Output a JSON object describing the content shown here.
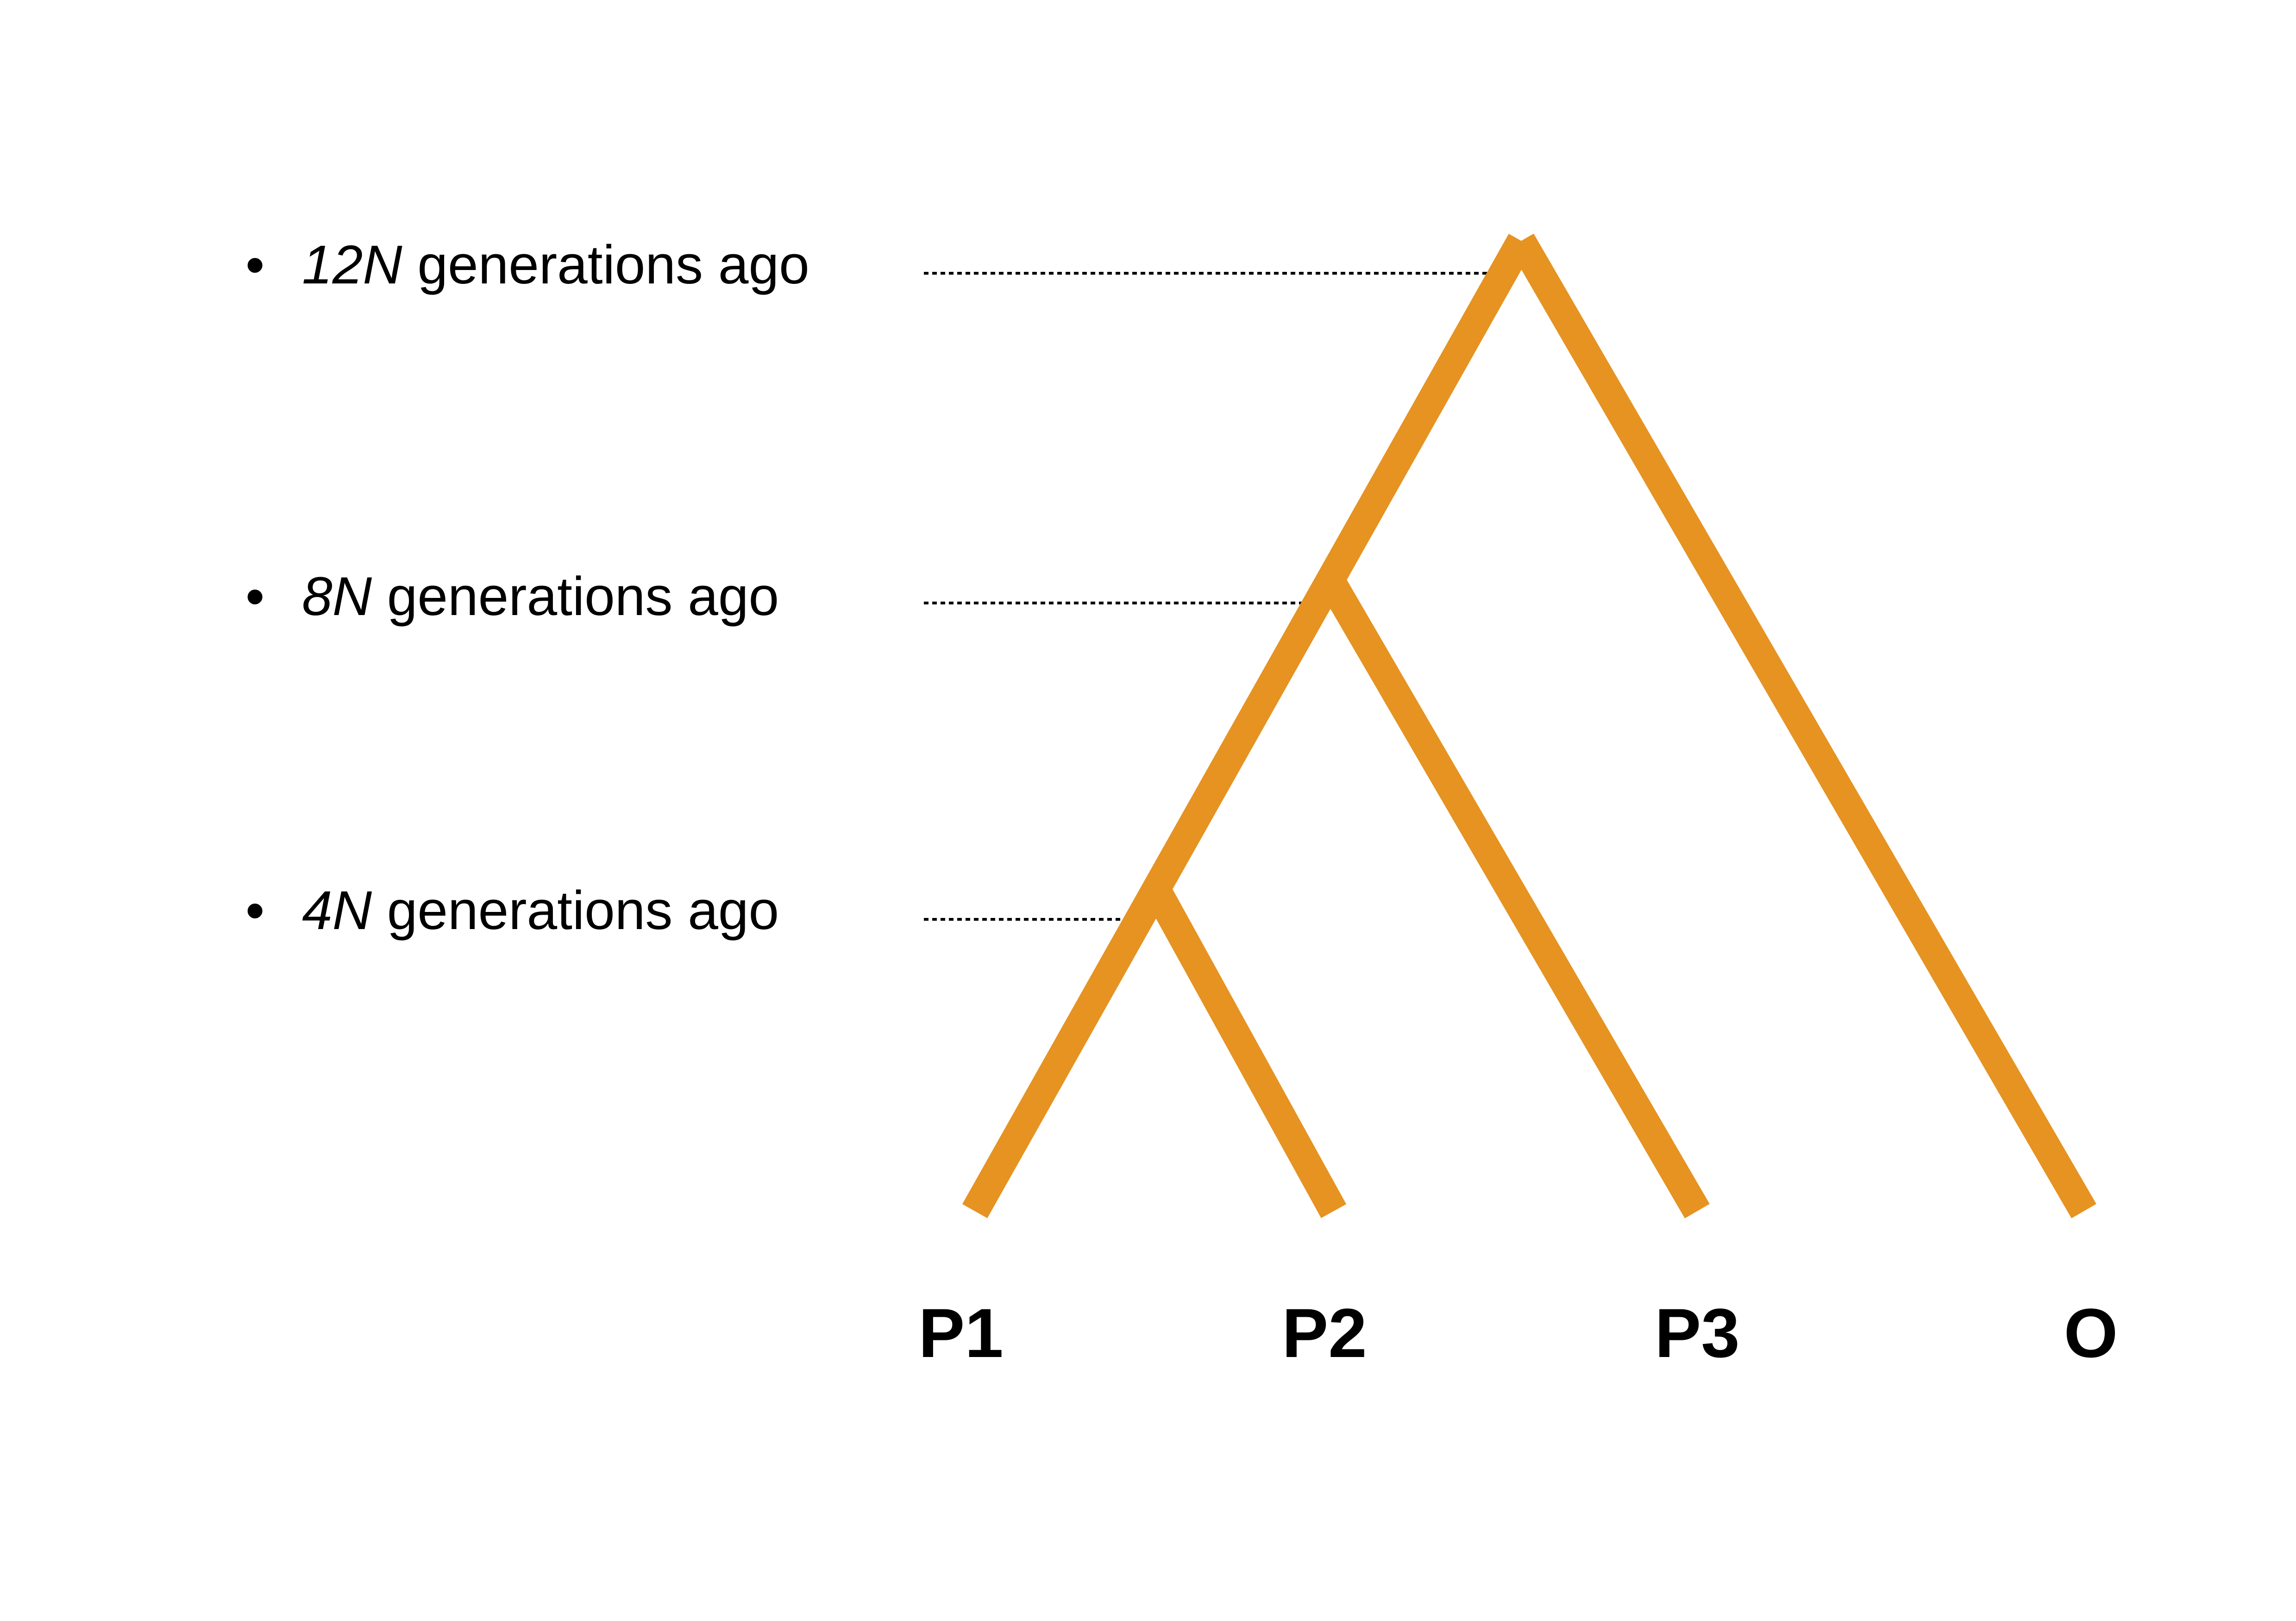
{
  "colors": {
    "branch": "#E69322",
    "guide": "#000000",
    "text": "#000000"
  },
  "time_labels": [
    {
      "prefix": "12N",
      "suffix": " generations ago"
    },
    {
      "prefix": "8N",
      "suffix": " generations ago"
    },
    {
      "prefix": "4N",
      "suffix": " generations ago"
    }
  ],
  "bullet": "•",
  "taxa": [
    "P1",
    "P2",
    "P3",
    "O"
  ]
}
